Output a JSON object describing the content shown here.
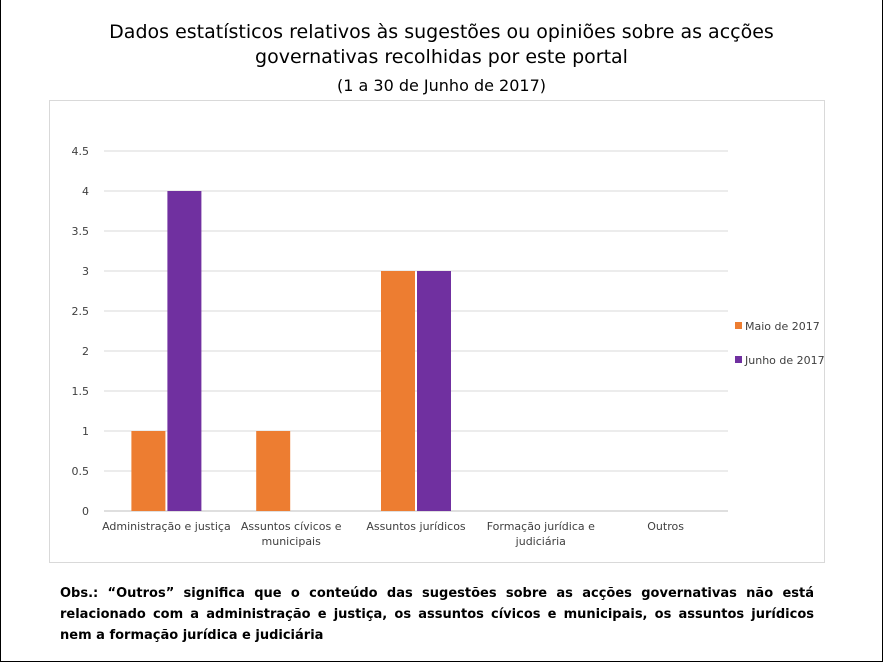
{
  "header": {
    "title_line1": "Dados estatísticos relativos às sugestões ou opiniões sobre as acções",
    "title_line2": "governativas recolhidas por este portal",
    "subtitle": "(1 a 30 de Junho de 2017)"
  },
  "chart_data": {
    "type": "bar",
    "categories": [
      [
        "Administração e justiça"
      ],
      [
        "Assuntos cívicos e",
        "municipais"
      ],
      [
        "Assuntos jurídicos"
      ],
      [
        "Formação jurídica e",
        "judiciária"
      ],
      [
        "Outros"
      ]
    ],
    "series": [
      {
        "name": "Maio de 2017",
        "color": "#ED7D31",
        "values": [
          1,
          1,
          3,
          0,
          0
        ]
      },
      {
        "name": "Junho de 2017",
        "color": "#7030A0",
        "values": [
          4,
          0,
          3,
          0,
          0
        ]
      }
    ],
    "yticks": [
      "0",
      "0.5",
      "1",
      "1.5",
      "2",
      "2.5",
      "3",
      "3.5",
      "4",
      "4.5"
    ],
    "ylim": [
      0,
      4.5
    ],
    "grid": true,
    "legend_position": "right"
  },
  "footnote": "Obs.: “Outros” significa que o conteúdo das sugestões sobre as acções governativas não está relacionado com a administração e justiça, os assuntos cívicos e municipais, os assuntos jurídicos nem a formação jurídica e judiciária"
}
